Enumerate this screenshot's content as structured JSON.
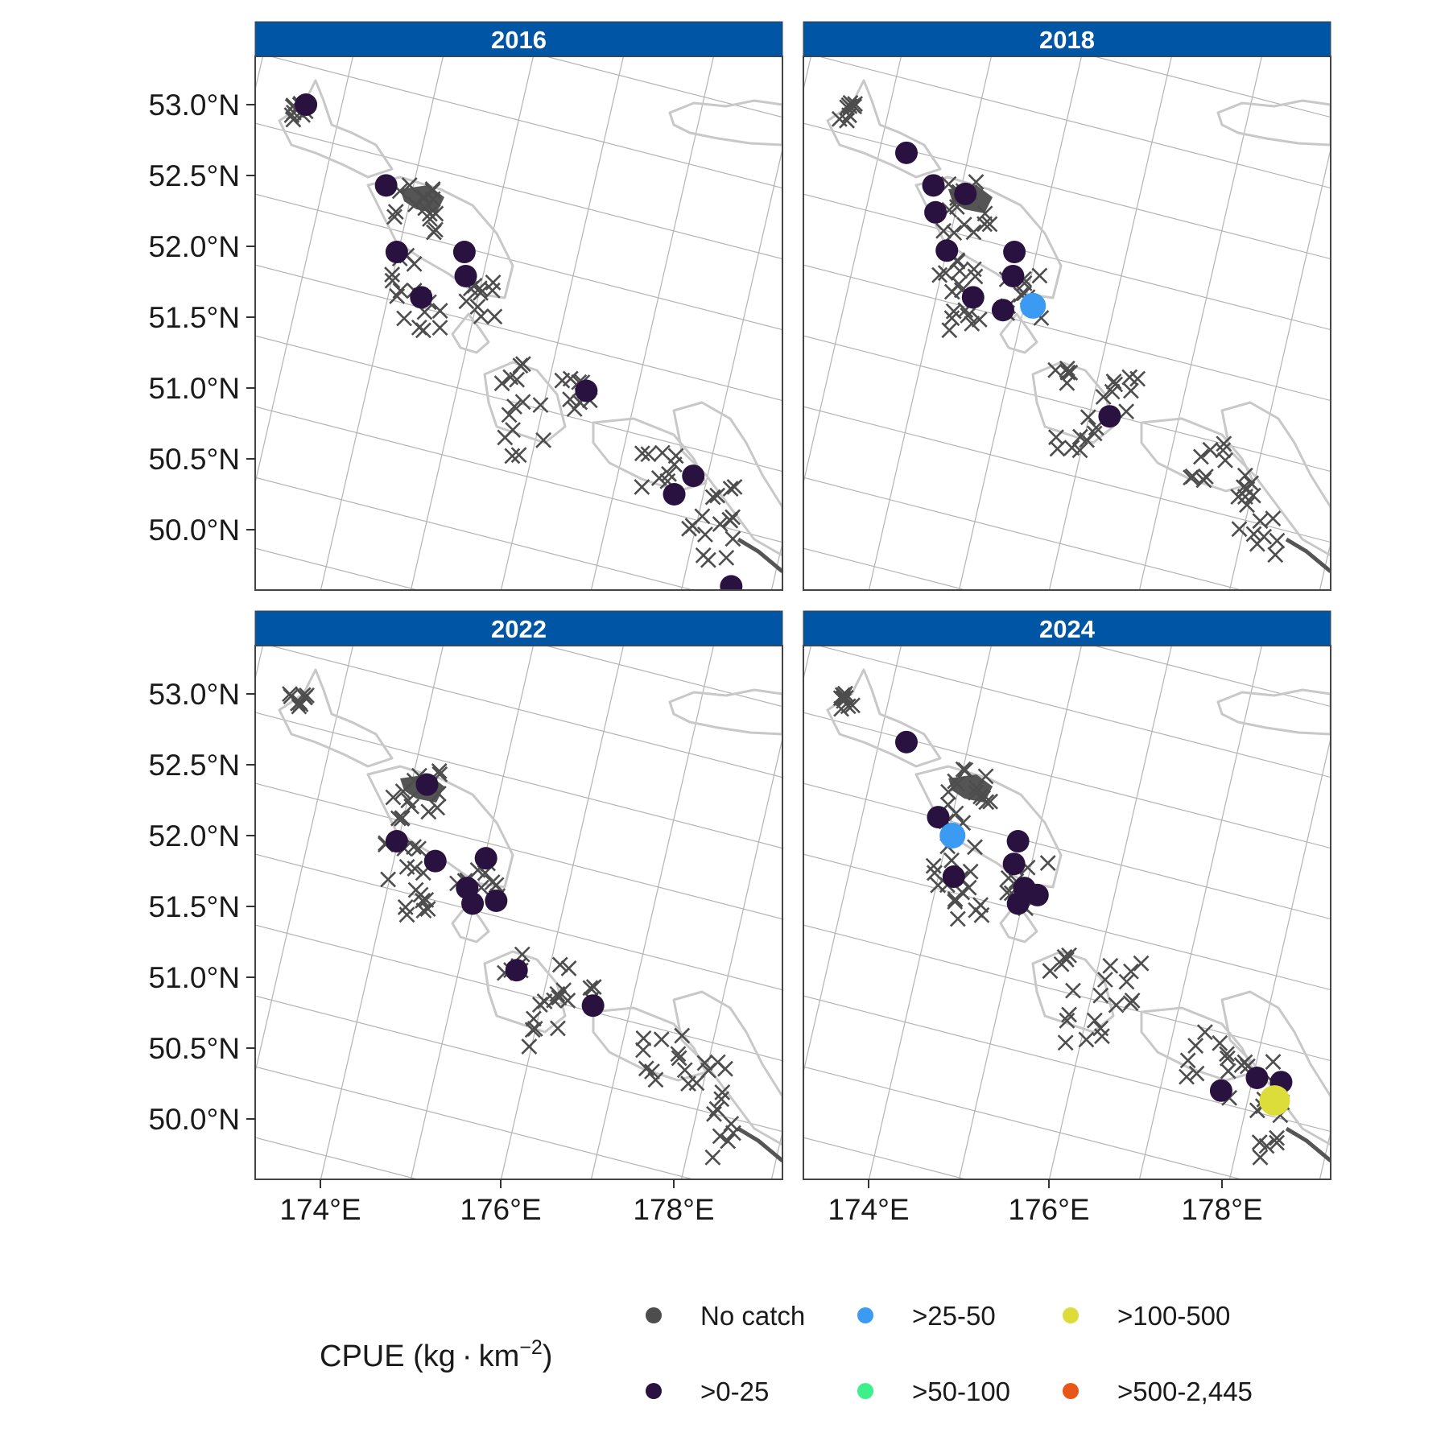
{
  "chart_data": {
    "type": "scatter",
    "map_type": "faceted survey station map",
    "graticule": true,
    "coastline_color": "#c8c8c8",
    "panel_border_color": "#444444",
    "strip_color": "#0055a5",
    "x_ticks": [
      "174°E",
      "176°E",
      "178°E"
    ],
    "y_ticks": [
      "53.0°N",
      "52.5°N",
      "52.0°N",
      "51.5°N",
      "51.0°N",
      "50.5°N",
      "50.0°N"
    ],
    "legend": {
      "title_main": "CPUE (kg",
      "title_dot": "·",
      "title_unit": "km",
      "title_exp": "−2",
      "title_close": ")",
      "placement": "bottom",
      "entries": [
        {
          "label": "No catch",
          "color": "#4d4d4d"
        },
        {
          "label": ">0-25",
          "color": "#2a1240"
        },
        {
          "label": ">25-50",
          "color": "#3b9bf2"
        },
        {
          "label": ">50-100",
          "color": "#3df08a"
        },
        {
          "label": ">100-500",
          "color": "#dcdc3a"
        },
        {
          "label": ">500-2,445",
          "color": "#e8561a"
        }
      ]
    },
    "panels": [
      {
        "year": "2016",
        "catch": [
          {
            "lon": 173.84,
            "lat": 53.0,
            "cls": 1
          },
          {
            "lon": 174.78,
            "lat": 52.43,
            "cls": 1
          },
          {
            "lon": 174.94,
            "lat": 51.96,
            "cls": 1
          },
          {
            "lon": 175.24,
            "lat": 51.64,
            "cls": 1
          },
          {
            "lon": 175.69,
            "lat": 51.96,
            "cls": 1
          },
          {
            "lon": 175.72,
            "lat": 51.79,
            "cls": 1
          },
          {
            "lon": 177.13,
            "lat": 50.98,
            "cls": 1
          },
          {
            "lon": 178.37,
            "lat": 50.38,
            "cls": 1
          },
          {
            "lon": 178.17,
            "lat": 50.25,
            "cls": 1
          },
          {
            "lon": 178.86,
            "lat": 49.6,
            "cls": 1
          }
        ]
      },
      {
        "year": "2018",
        "catch": [
          {
            "lon": 174.45,
            "lat": 52.66,
            "cls": 1
          },
          {
            "lon": 174.77,
            "lat": 52.43,
            "cls": 1
          },
          {
            "lon": 175.13,
            "lat": 52.37,
            "cls": 1
          },
          {
            "lon": 174.81,
            "lat": 52.24,
            "cls": 1
          },
          {
            "lon": 174.96,
            "lat": 51.97,
            "cls": 1
          },
          {
            "lon": 175.71,
            "lat": 51.96,
            "cls": 1
          },
          {
            "lon": 175.71,
            "lat": 51.79,
            "cls": 1
          },
          {
            "lon": 175.28,
            "lat": 51.64,
            "cls": 1
          },
          {
            "lon": 175.62,
            "lat": 51.55,
            "cls": 1
          },
          {
            "lon": 175.95,
            "lat": 51.58,
            "cls": 2
          },
          {
            "lon": 176.87,
            "lat": 50.8,
            "cls": 1
          }
        ]
      },
      {
        "year": "2022",
        "catch": [
          {
            "lon": 175.24,
            "lat": 52.36,
            "cls": 1
          },
          {
            "lon": 174.94,
            "lat": 51.96,
            "cls": 1
          },
          {
            "lon": 175.38,
            "lat": 51.82,
            "cls": 1
          },
          {
            "lon": 175.94,
            "lat": 51.84,
            "cls": 1
          },
          {
            "lon": 175.75,
            "lat": 51.63,
            "cls": 1
          },
          {
            "lon": 176.08,
            "lat": 51.54,
            "cls": 1
          },
          {
            "lon": 175.82,
            "lat": 51.52,
            "cls": 1
          },
          {
            "lon": 176.35,
            "lat": 51.05,
            "cls": 1
          },
          {
            "lon": 177.22,
            "lat": 50.8,
            "cls": 1
          }
        ]
      },
      {
        "year": "2024",
        "catch": [
          {
            "lon": 174.45,
            "lat": 52.66,
            "cls": 1
          },
          {
            "lon": 174.85,
            "lat": 52.13,
            "cls": 1
          },
          {
            "lon": 175.02,
            "lat": 52.0,
            "cls": 2
          },
          {
            "lon": 175.06,
            "lat": 51.71,
            "cls": 1
          },
          {
            "lon": 175.75,
            "lat": 51.96,
            "cls": 1
          },
          {
            "lon": 175.72,
            "lat": 51.8,
            "cls": 1
          },
          {
            "lon": 175.85,
            "lat": 51.63,
            "cls": 1
          },
          {
            "lon": 176.0,
            "lat": 51.58,
            "cls": 1
          },
          {
            "lon": 175.79,
            "lat": 51.52,
            "cls": 1
          },
          {
            "lon": 178.16,
            "lat": 50.2,
            "cls": 1
          },
          {
            "lon": 178.55,
            "lat": 50.29,
            "cls": 1
          },
          {
            "lon": 178.82,
            "lat": 50.26,
            "cls": 1
          },
          {
            "lon": 178.76,
            "lat": 50.13,
            "cls": 4
          }
        ]
      }
    ]
  }
}
